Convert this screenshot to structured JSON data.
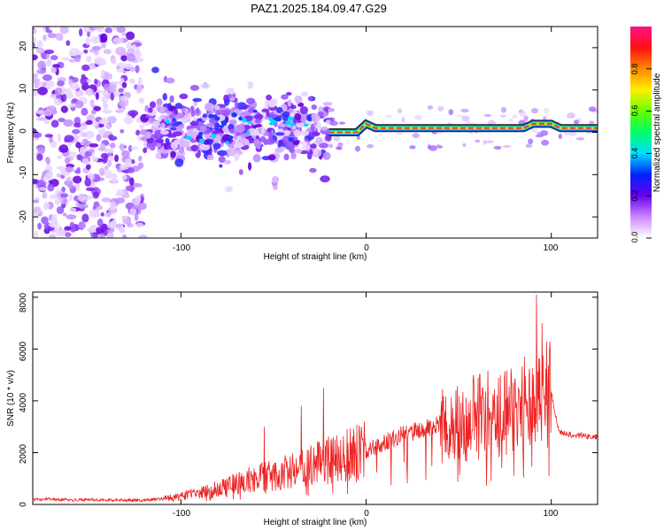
{
  "figure": {
    "title": "PAZ1.2025.184.09.47.G29"
  },
  "colors": {
    "snr_line": "#ee2222",
    "carrier_core": "#ff2a4a",
    "carrier_edge": "#00ddaa",
    "background": "#ffffff",
    "axes": "#000000"
  },
  "chart_data": [
    {
      "type": "heatmap",
      "name": "spectrogram",
      "xlabel": "Height of straight line (km)",
      "ylabel": "Frequency (Hz)",
      "xlim": [
        -180,
        125
      ],
      "ylim": [
        -25,
        25
      ],
      "xticks": [
        -100,
        0,
        100
      ],
      "yticks": [
        -20,
        -10,
        0,
        10,
        20
      ],
      "xtick_labels": [
        "-100",
        "0",
        "100"
      ],
      "ytick_labels": [
        "-20",
        "-10",
        "0",
        "10",
        "20"
      ],
      "colorbar": {
        "label": "Normalized spectral amplitude",
        "range": [
          0,
          1
        ],
        "ticks": [
          0.0,
          0.2,
          0.4,
          0.6,
          0.8
        ],
        "tick_labels": [
          "0.0",
          "0.2",
          "0.4",
          "0.6",
          "0.8"
        ],
        "colormap": "rainbow (white-violet-blue-cyan-green-yellow-red-magenta)"
      },
      "features": {
        "noise_region_x": [
          -180,
          -120
        ],
        "turbulent_region_x": [
          -120,
          -20
        ],
        "carrier_x": [
          -20,
          125
        ],
        "carrier_freq_hz": [
          {
            "x": -20,
            "f": 0
          },
          {
            "x": -5,
            "f": 0
          },
          {
            "x": 0,
            "f": 2
          },
          {
            "x": 5,
            "f": 1
          },
          {
            "x": 85,
            "f": 1
          },
          {
            "x": 90,
            "f": 2
          },
          {
            "x": 100,
            "f": 2
          },
          {
            "x": 105,
            "f": 1
          },
          {
            "x": 125,
            "f": 1
          }
        ]
      }
    },
    {
      "type": "line",
      "name": "snr",
      "xlabel": "Height of straight line (km)",
      "ylabel": "SNR (10 * v/v)",
      "xlim": [
        -180,
        125
      ],
      "ylim": [
        0,
        8200
      ],
      "xticks": [
        -100,
        0,
        100
      ],
      "yticks": [
        0,
        2000,
        4000,
        6000,
        8000
      ],
      "xtick_labels": [
        "-100",
        "0",
        "100"
      ],
      "ytick_labels": [
        "0",
        "2000",
        "4000",
        "6000",
        "8000"
      ],
      "trend": {
        "x": [
          -180,
          -120,
          -100,
          -80,
          -60,
          -40,
          -20,
          0,
          20,
          40,
          50,
          60,
          70,
          80,
          90,
          96,
          100,
          104,
          110,
          125
        ],
        "y": [
          200,
          150,
          300,
          600,
          1000,
          1300,
          1700,
          2100,
          2700,
          3100,
          3200,
          3400,
          3500,
          3600,
          4000,
          4300,
          4300,
          2800,
          2700,
          2600
        ]
      },
      "peaks": [
        {
          "x": -55,
          "y": 3000
        },
        {
          "x": -35,
          "y": 3800
        },
        {
          "x": -23,
          "y": 4500
        },
        {
          "x": 58,
          "y": 5000
        },
        {
          "x": 63,
          "y": 4500
        },
        {
          "x": 88,
          "y": 5000
        },
        {
          "x": 92,
          "y": 8100
        },
        {
          "x": 95,
          "y": 7000
        }
      ]
    }
  ]
}
